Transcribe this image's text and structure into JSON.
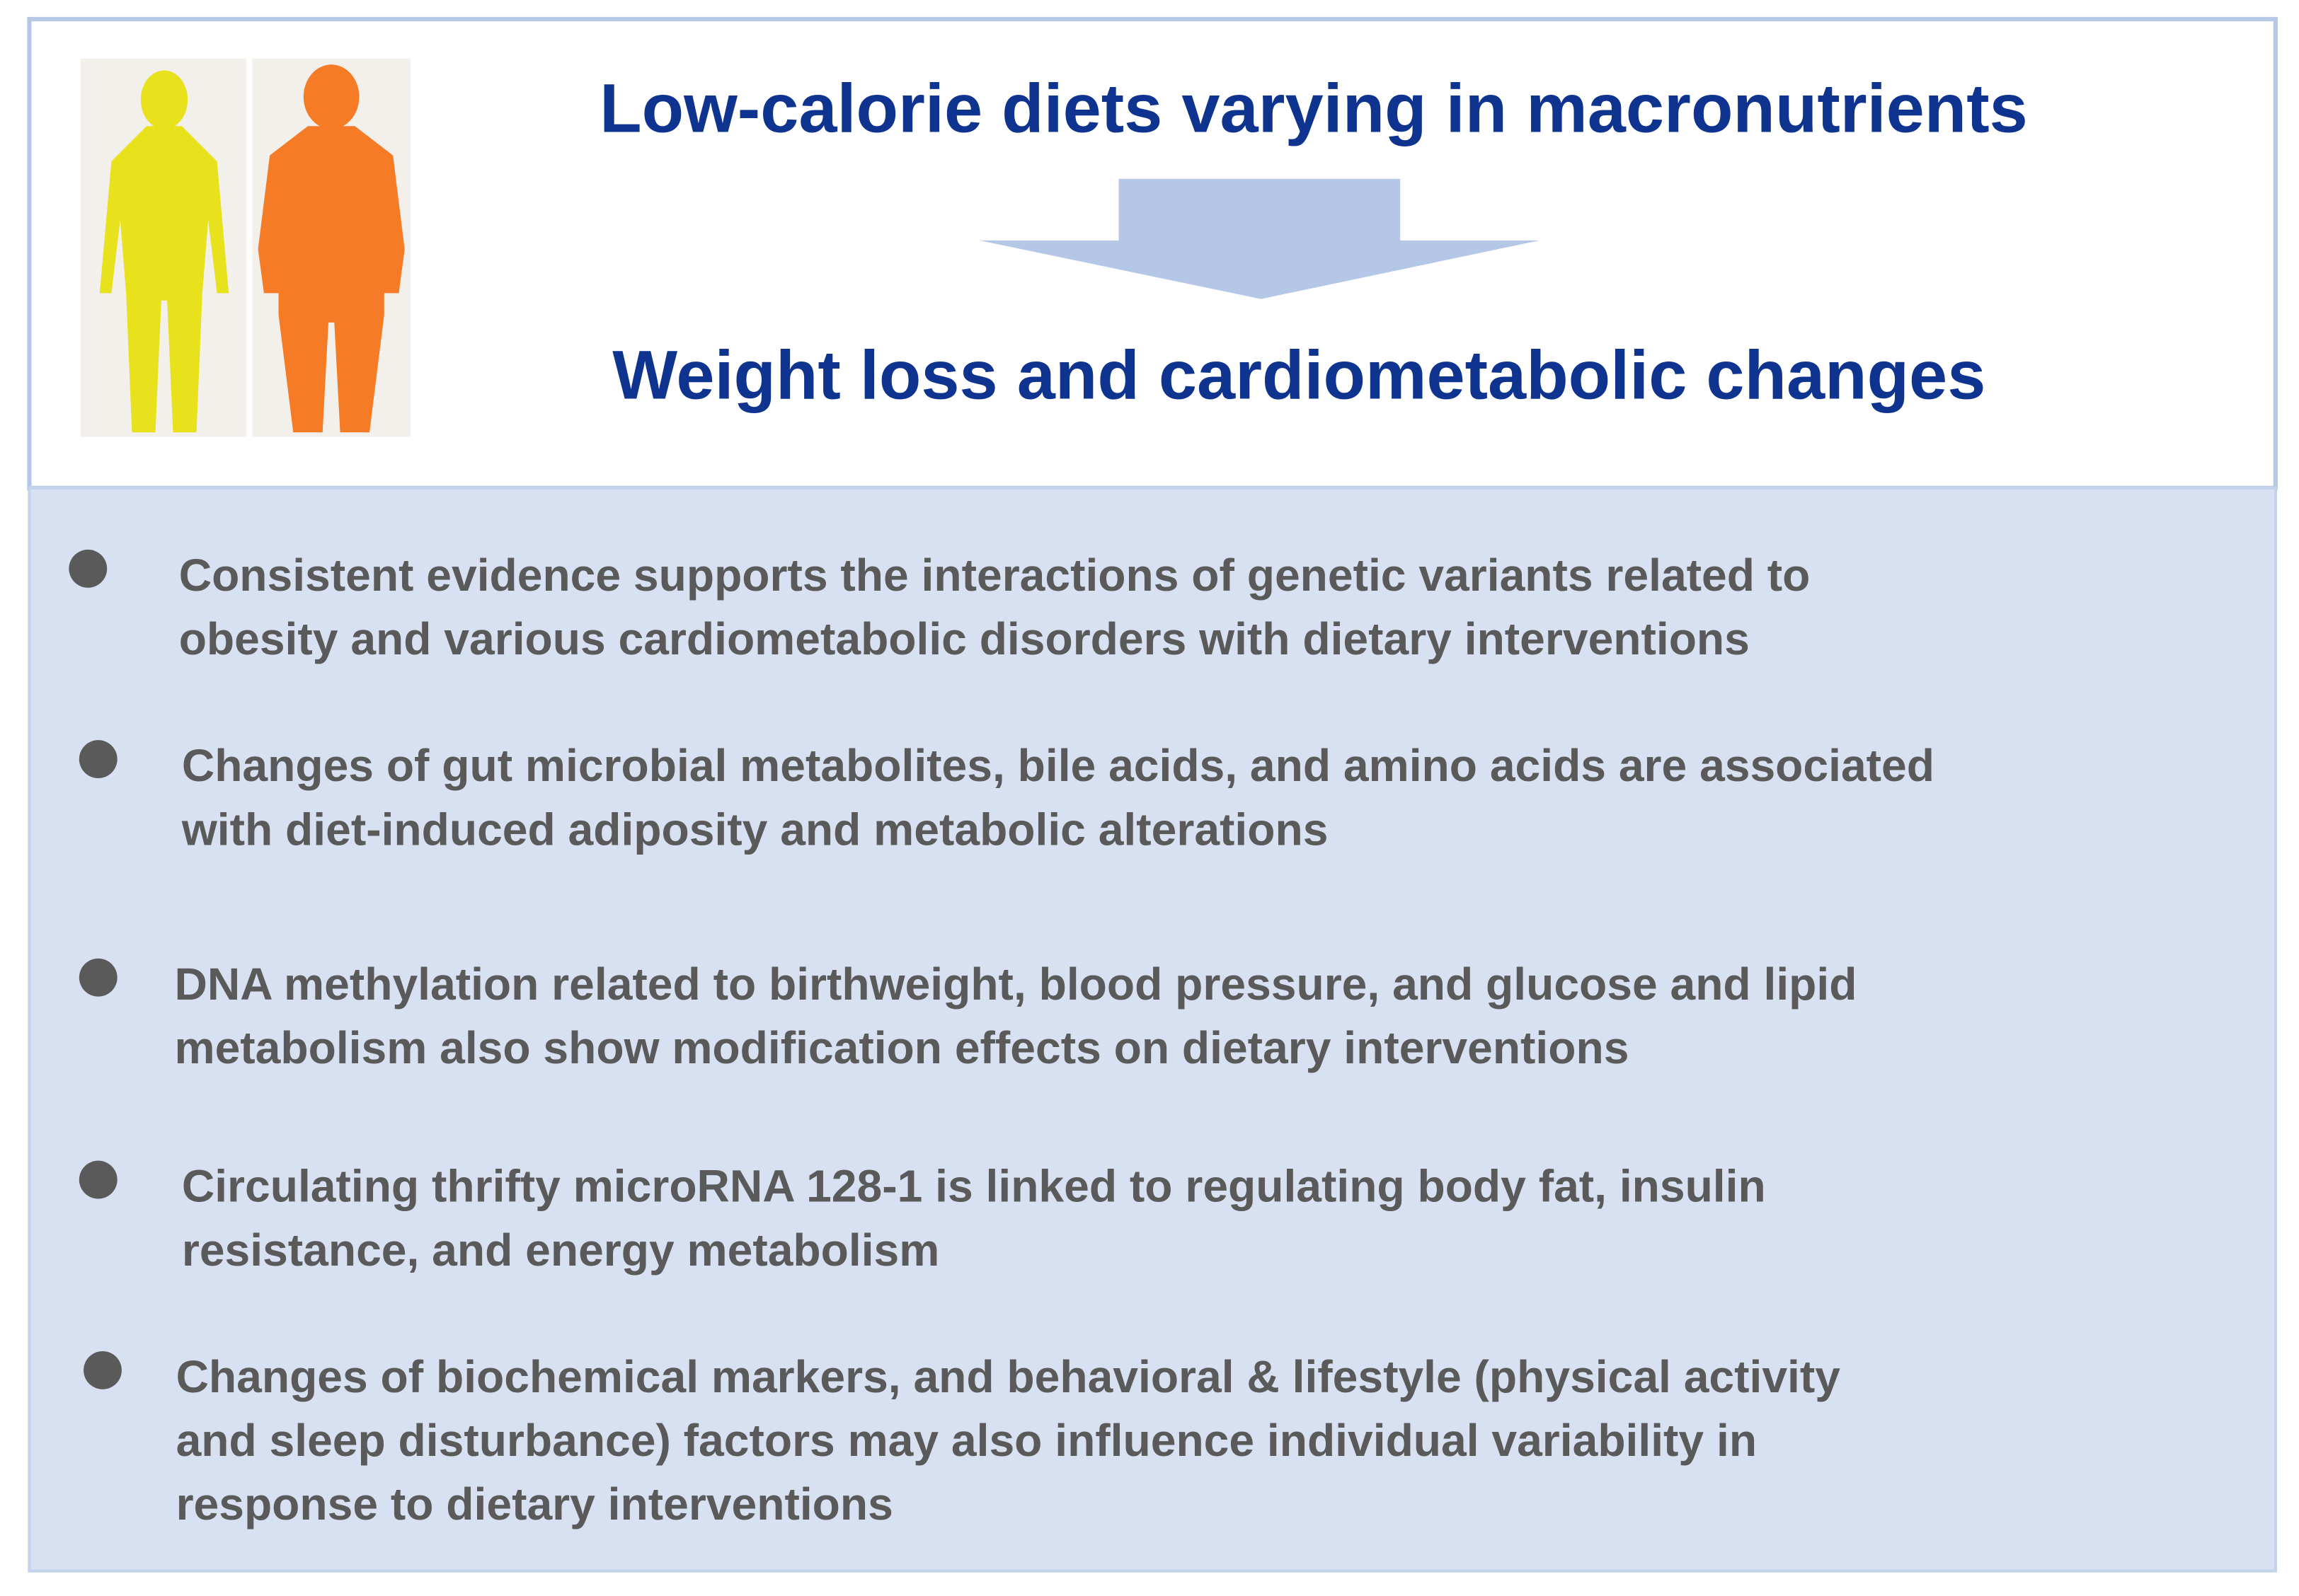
{
  "header": {
    "title": "Low-calorie diets varying in macronutrients",
    "subtitle": "Weight loss and cardiometabolic changes"
  },
  "bullets": [
    {
      "lines": [
        "Consistent evidence supports the interactions of genetic variants related to",
        "obesity and various cardiometabolic disorders with dietary interventions"
      ]
    },
    {
      "lines": [
        "Changes of gut microbial metabolites, bile acids, and amino acids are associated",
        "with diet-induced adiposity and metabolic alterations"
      ]
    },
    {
      "lines": [
        "DNA methylation related to birthweight, blood pressure, and glucose and lipid",
        "metabolism also show modification effects on dietary interventions"
      ]
    },
    {
      "lines": [
        "Circulating thrifty microRNA 128-1 is linked to regulating body fat, insulin",
        "resistance, and energy metabolism"
      ]
    },
    {
      "lines": [
        "Changes of biochemical markers, and behavioral & lifestyle (physical activity",
        "and sleep disturbance) factors may also influence individual variability in",
        "response to dietary interventions"
      ]
    }
  ]
}
